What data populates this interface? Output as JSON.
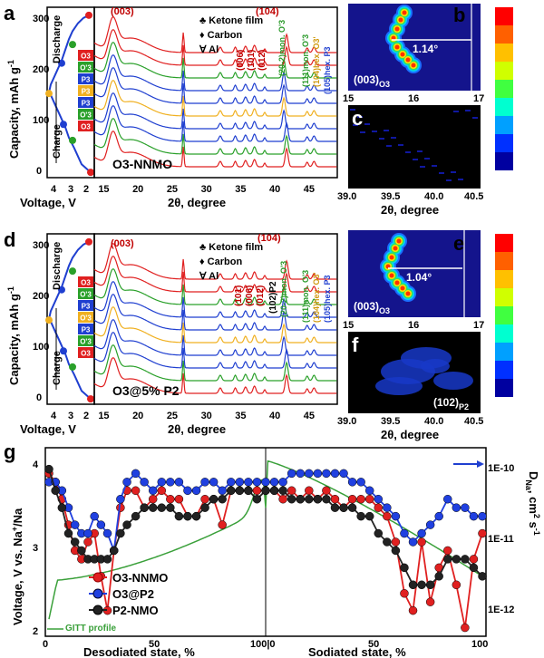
{
  "chart_data": [
    {
      "panel": "a",
      "type": "line",
      "title": "O3-NNMO",
      "xlabel": "Voltage, V",
      "ylabel": "Capacity, mAh g-1",
      "x_ticks": [
        "4",
        "3",
        "2"
      ],
      "y_ticks": [
        "0",
        "100",
        "200",
        "300"
      ],
      "xlim": [
        4.4,
        1.8
      ],
      "ylim": [
        -10,
        310
      ],
      "series": [
        {
          "name": "charge-discharge",
          "x": [
            2.0,
            2.5,
            2.9,
            3.2,
            3.4,
            3.6,
            3.8,
            4.0,
            4.2,
            4.3,
            4.2,
            4.0,
            3.8,
            3.6,
            3.4,
            3.2,
            3.0,
            2.7,
            2.4,
            2.1
          ],
          "y": [
            0,
            15,
            45,
            65,
            85,
            100,
            115,
            130,
            145,
            150,
            165,
            180,
            195,
            210,
            230,
            250,
            265,
            280,
            290,
            295
          ]
        }
      ],
      "markers": [
        {
          "x": 2.0,
          "y": 0,
          "color": "#e02020"
        },
        {
          "x": 3.0,
          "y": 60,
          "color": "#2aa02a"
        },
        {
          "x": 3.5,
          "y": 90,
          "color": "#1f3fd0"
        },
        {
          "x": 4.3,
          "y": 148,
          "color": "#f0b020"
        },
        {
          "x": 3.6,
          "y": 205,
          "color": "#1f3fd0"
        },
        {
          "x": 3.0,
          "y": 240,
          "color": "#2aa02a"
        },
        {
          "x": 2.1,
          "y": 295,
          "color": "#e02020"
        }
      ],
      "annotations": [
        "Discharge",
        "Charge"
      ],
      "phase_boxes": [
        "O3",
        "O'3",
        "P3",
        "P3",
        "P3",
        "O'3",
        "O3"
      ]
    },
    {
      "panel": "a-xrd",
      "type": "line",
      "xlabel": "2θ, degree",
      "x_ticks": [
        "15",
        "20",
        "25",
        "30",
        "35",
        "40",
        "45"
      ],
      "xlim": [
        13.5,
        49
      ],
      "legend": [
        "Ketone film",
        "Carbon",
        "Al"
      ],
      "legend_symbols": [
        "♣",
        "♦",
        "∀"
      ],
      "peak_labels": [
        "(003)",
        "(006)",
        "(101)",
        "(012)",
        "(104)",
        "(20-2)mon. O'3",
        "(111)mon. O'3",
        "(104)hex. O3'",
        "(105)hex. P3"
      ],
      "series_count": 10
    },
    {
      "panel": "b",
      "type": "heatmap",
      "x_ticks": [
        "15",
        "16",
        "17"
      ],
      "xlim": [
        15,
        17
      ],
      "annotation": "1.14°",
      "label": "(003)O3"
    },
    {
      "panel": "c",
      "type": "heatmap",
      "xlabel": "2θ, degree",
      "x_ticks": [
        "39.0",
        "39.5",
        "40.0",
        "40.5"
      ],
      "xlim": [
        39,
        40.5
      ]
    },
    {
      "panel": "d",
      "type": "line",
      "title": "O3@5% P2",
      "xlabel": "Voltage, V",
      "ylabel": "Capacity, mAh g-1",
      "x_ticks": [
        "4",
        "3",
        "2"
      ],
      "y_ticks": [
        "0",
        "100",
        "200",
        "300"
      ],
      "xlim": [
        4.4,
        1.8
      ],
      "ylim": [
        -10,
        310
      ],
      "annotations": [
        "Discharge",
        "Charge"
      ],
      "phase_boxes": [
        "O3",
        "O'3",
        "P3",
        "P3",
        "P3",
        "O'3",
        "O3"
      ]
    },
    {
      "panel": "d-xrd",
      "type": "line",
      "xlabel": "2θ, degree",
      "x_ticks": [
        "15",
        "20",
        "25",
        "30",
        "35",
        "40",
        "45"
      ],
      "xlim": [
        13.5,
        49
      ],
      "legend": [
        "Ketone film",
        "Carbon",
        "Al"
      ],
      "peak_labels": [
        "(003)",
        "(101)",
        "(006)",
        "(012)",
        "(104)",
        "(102)P2",
        "(20-2)mon. O'3",
        "(111)mon. O'3",
        "(104)hex. O3'",
        "(105)hex. P3"
      ],
      "series_count": 10
    },
    {
      "panel": "e",
      "type": "heatmap",
      "x_ticks": [
        "15",
        "16",
        "17"
      ],
      "xlim": [
        15,
        17
      ],
      "annotation": "1.04°",
      "label": "(003)O3"
    },
    {
      "panel": "f",
      "type": "heatmap",
      "xlabel": "2θ, degree",
      "x_ticks": [
        "39.0",
        "39.5",
        "40.0",
        "40.5"
      ],
      "xlim": [
        39,
        40.5
      ],
      "label": "(102)P2"
    },
    {
      "panel": "g",
      "type": "scatter",
      "xlabel_left": "Desodiated state, %",
      "xlabel_right": "Sodiated state, %",
      "ylabel": "Voltage, V vs. Na+/Na",
      "ylabel_right": "DNa, cm2 s-1",
      "x_ticks": [
        "0",
        "50",
        "100|0",
        "50",
        "100"
      ],
      "y_ticks": [
        "2",
        "3",
        "4"
      ],
      "y_right_ticks": [
        "1E-12",
        "1E-11",
        "1E-10"
      ],
      "ylim": [
        1.9,
        4.1
      ],
      "gitt_label": "GITT profile",
      "series": [
        {
          "name": "O3-NNMO",
          "color": "#e02020",
          "x": [
            0,
            3,
            6,
            9,
            12,
            15,
            18,
            21,
            24,
            27,
            30,
            33,
            36,
            40,
            44,
            48,
            52,
            56,
            60,
            64,
            68,
            72,
            76,
            80,
            84,
            88,
            92,
            96,
            100,
            104,
            108,
            112,
            116,
            120,
            124,
            128,
            132,
            136,
            140,
            144,
            148,
            152,
            156,
            160,
            164,
            168,
            172,
            176,
            180,
            184,
            188,
            192,
            196,
            200
          ],
          "y": [
            3.8,
            3.7,
            3.5,
            3.2,
            2.9,
            2.8,
            3.0,
            3.1,
            2.6,
            2.2,
            2.9,
            3.4,
            3.6,
            3.6,
            3.4,
            3.5,
            3.6,
            3.5,
            3.5,
            3.3,
            3.3,
            3.5,
            3.5,
            3.2,
            3.6,
            3.6,
            3.6,
            3.6,
            3.6,
            3.6,
            3.5,
            3.6,
            3.5,
            3.6,
            3.5,
            3.6,
            3.5,
            3.4,
            3.5,
            3.5,
            3.5,
            3.4,
            3.3,
            3.0,
            2.4,
            2.2,
            3.0,
            2.3,
            2.7,
            2.9,
            2.5,
            2.0,
            2.8,
            3.1
          ]
        },
        {
          "name": "O3@P2",
          "color": "#2040e0",
          "x": [
            0,
            3,
            6,
            9,
            12,
            15,
            18,
            21,
            24,
            27,
            30,
            33,
            36,
            40,
            44,
            48,
            52,
            56,
            60,
            64,
            68,
            72,
            76,
            80,
            84,
            88,
            92,
            96,
            100,
            104,
            108,
            112,
            116,
            120,
            124,
            128,
            132,
            136,
            140,
            144,
            148,
            152,
            156,
            160,
            164,
            168,
            172,
            176,
            180,
            184,
            188,
            192,
            196,
            200
          ],
          "y": [
            3.7,
            3.7,
            3.6,
            3.4,
            3.2,
            3.1,
            3.1,
            3.3,
            3.2,
            3.1,
            2.9,
            3.5,
            3.7,
            3.8,
            3.7,
            3.6,
            3.7,
            3.7,
            3.7,
            3.6,
            3.6,
            3.7,
            3.7,
            3.6,
            3.7,
            3.7,
            3.7,
            3.7,
            3.7,
            3.7,
            3.7,
            3.8,
            3.8,
            3.8,
            3.8,
            3.8,
            3.8,
            3.8,
            3.7,
            3.7,
            3.6,
            3.5,
            3.4,
            3.3,
            3.1,
            3.0,
            3.1,
            3.2,
            3.3,
            3.5,
            3.4,
            3.4,
            3.3,
            3.3
          ]
        },
        {
          "name": "P2-NMO",
          "color": "#222222",
          "x": [
            0,
            3,
            6,
            9,
            12,
            15,
            18,
            21,
            24,
            27,
            30,
            33,
            36,
            40,
            44,
            48,
            52,
            56,
            60,
            64,
            68,
            72,
            76,
            80,
            84,
            88,
            92,
            96,
            100,
            104,
            108,
            112,
            116,
            120,
            124,
            128,
            132,
            136,
            140,
            144,
            148,
            152,
            156,
            160,
            164,
            168,
            172,
            176,
            180,
            184,
            188,
            192,
            196,
            200
          ],
          "y": [
            3.85,
            3.6,
            3.4,
            3.1,
            3.0,
            2.9,
            2.8,
            2.8,
            2.8,
            2.8,
            2.9,
            3.1,
            3.2,
            3.3,
            3.4,
            3.4,
            3.4,
            3.4,
            3.3,
            3.3,
            3.3,
            3.4,
            3.5,
            3.5,
            3.6,
            3.6,
            3.6,
            3.5,
            3.6,
            3.6,
            3.6,
            3.5,
            3.5,
            3.5,
            3.5,
            3.5,
            3.4,
            3.4,
            3.4,
            3.3,
            3.3,
            3.1,
            3.0,
            2.9,
            2.7,
            2.5,
            2.5,
            2.5,
            2.6,
            2.8,
            2.8,
            2.8,
            2.7,
            2.6
          ]
        }
      ]
    }
  ],
  "labels": {
    "panel_a": "a",
    "panel_b": "b",
    "panel_c": "c",
    "panel_d": "d",
    "panel_e": "e",
    "panel_f": "f",
    "panel_g": "g",
    "sample_a": "O3-NNMO",
    "sample_d": "O3@5% P2",
    "ylab_top": "Capacity, mAh g",
    "ylab_sup": "-1",
    "volt": "Voltage, V",
    "two_theta": "2θ, degree",
    "discharge": "Discharge",
    "charge": "Charge",
    "leg1": "♣ Ketone film",
    "leg2": "♦ Carbon",
    "leg3": "∀ Al",
    "b_angle": "1.14°",
    "e_angle": "1.04°",
    "b_label": "(003)",
    "b_sub": "O3",
    "e_label": "(003)",
    "e_sub": "O3",
    "f_label": "(102)",
    "f_sub": "P2",
    "g_left": "Desodiated state, %",
    "g_right": "Sodiated state, %",
    "g_ylab": "Voltage, V vs. Na",
    "g_ylab_sup": "+",
    "g_ylab_end": "/Na",
    "g_rlab": "D",
    "g_rlab_sub": "Na",
    "g_rlab_end": ", cm",
    "g_rlab_sup": "2",
    "g_rlab_s": " s",
    "g_rlab_sup2": "-1",
    "gitt": "GITT profile",
    "leg_g1": "O3-NNMO",
    "leg_g2": "O3@P2",
    "leg_g3": "P2-NMO"
  }
}
